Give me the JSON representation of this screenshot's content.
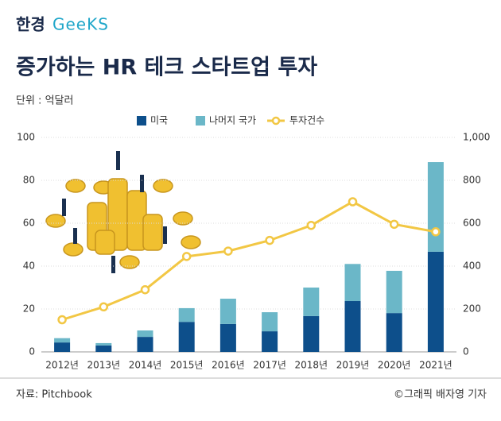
{
  "header": {
    "logo_korean": "한경",
    "logo_english": "GeeKS"
  },
  "chart_data": {
    "type": "bar",
    "title": "증가하는 HR 테크 스타트업 투자",
    "unit_label": "단위 : 억달러",
    "categories": [
      "2012년",
      "2013년",
      "2014년",
      "2015년",
      "2016년",
      "2017년",
      "2018년",
      "2019년",
      "2020년",
      "2021년"
    ],
    "series": [
      {
        "name": "미국",
        "color": "#0d4f8b",
        "values": [
          4.4,
          3,
          7,
          14,
          13,
          9.6,
          16.7,
          23.7,
          18.1,
          46.7
        ]
      },
      {
        "name": "나머지 국가",
        "color": "#6bb7c8",
        "values": [
          2,
          1.1,
          3,
          6.4,
          11.8,
          8.9,
          13.3,
          17.3,
          19.7,
          41.8
        ]
      },
      {
        "name": "투자건수",
        "color": "#f2c744",
        "type": "line",
        "axis": "y2",
        "values": [
          150,
          210,
          290,
          445,
          470,
          520,
          590,
          700,
          595,
          560
        ]
      }
    ],
    "stacked": true,
    "ylim": [
      0,
      100
    ],
    "yticks": [
      0,
      20,
      40,
      60,
      80,
      100
    ],
    "y2lim": [
      0,
      1000
    ],
    "y2ticks": [
      0,
      200,
      400,
      600,
      800,
      {
        "value": 1000,
        "label": "1,000"
      }
    ]
  },
  "footer": {
    "source": "자료: Pitchbook",
    "credit": "©그래픽 배자영 기자"
  }
}
